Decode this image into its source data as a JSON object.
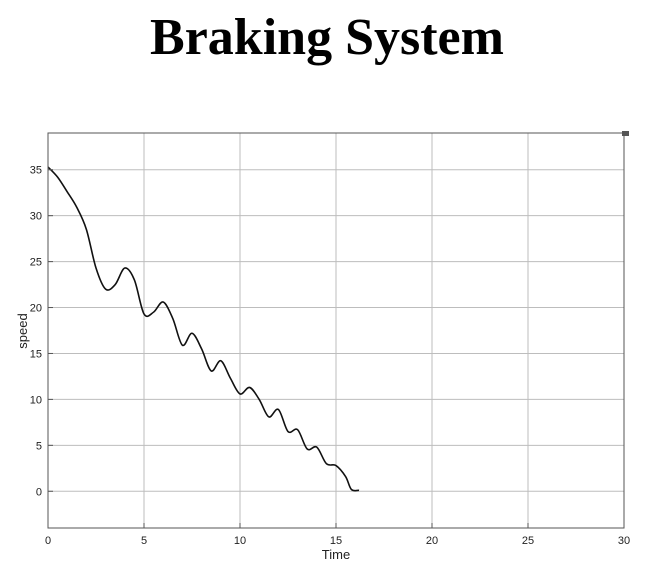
{
  "title": "Braking System",
  "chart_data": {
    "type": "line",
    "title": "Braking System",
    "xlabel": "Time",
    "ylabel": "speed",
    "xlim": [
      0,
      30
    ],
    "ylim": [
      -4,
      39
    ],
    "xticks": [
      0,
      5,
      10,
      15,
      20,
      25,
      30
    ],
    "yticks": [
      0,
      5,
      10,
      15,
      20,
      25,
      30,
      35
    ],
    "grid": true,
    "line_color": "#111111",
    "series": [
      {
        "x": [
          0,
          0.5,
          1,
          1.5,
          2,
          2.5,
          3,
          3.5,
          4,
          4.5,
          5,
          5.5,
          6,
          6.5,
          7,
          7.5,
          8,
          8.5,
          9,
          9.5,
          10,
          10.5,
          11,
          11.5,
          12,
          12.5,
          13,
          13.5,
          14,
          14.5,
          15,
          15.5,
          15.8,
          16.2
        ],
        "y": [
          35.3,
          34.2,
          32.6,
          30.9,
          28.5,
          24.3,
          22.0,
          22.5,
          24.3,
          23.0,
          19.3,
          19.5,
          20.6,
          18.8,
          15.9,
          17.2,
          15.5,
          13.1,
          14.2,
          12.3,
          10.6,
          11.3,
          10.0,
          8.1,
          8.9,
          6.5,
          6.7,
          4.6,
          4.8,
          3.0,
          2.8,
          1.6,
          0.2,
          0.1
        ]
      }
    ]
  }
}
